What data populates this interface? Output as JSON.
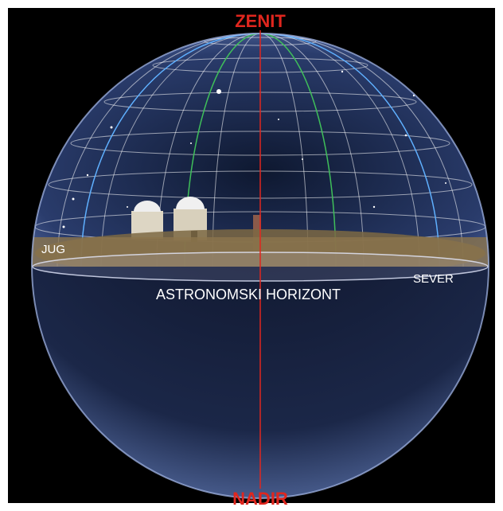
{
  "labels": {
    "zenith": "ZENIT",
    "nadir": "NADIR",
    "south": "JUG",
    "north": "SEVER",
    "horizon": "ASTRONOMSKI HORIZONT"
  }
}
